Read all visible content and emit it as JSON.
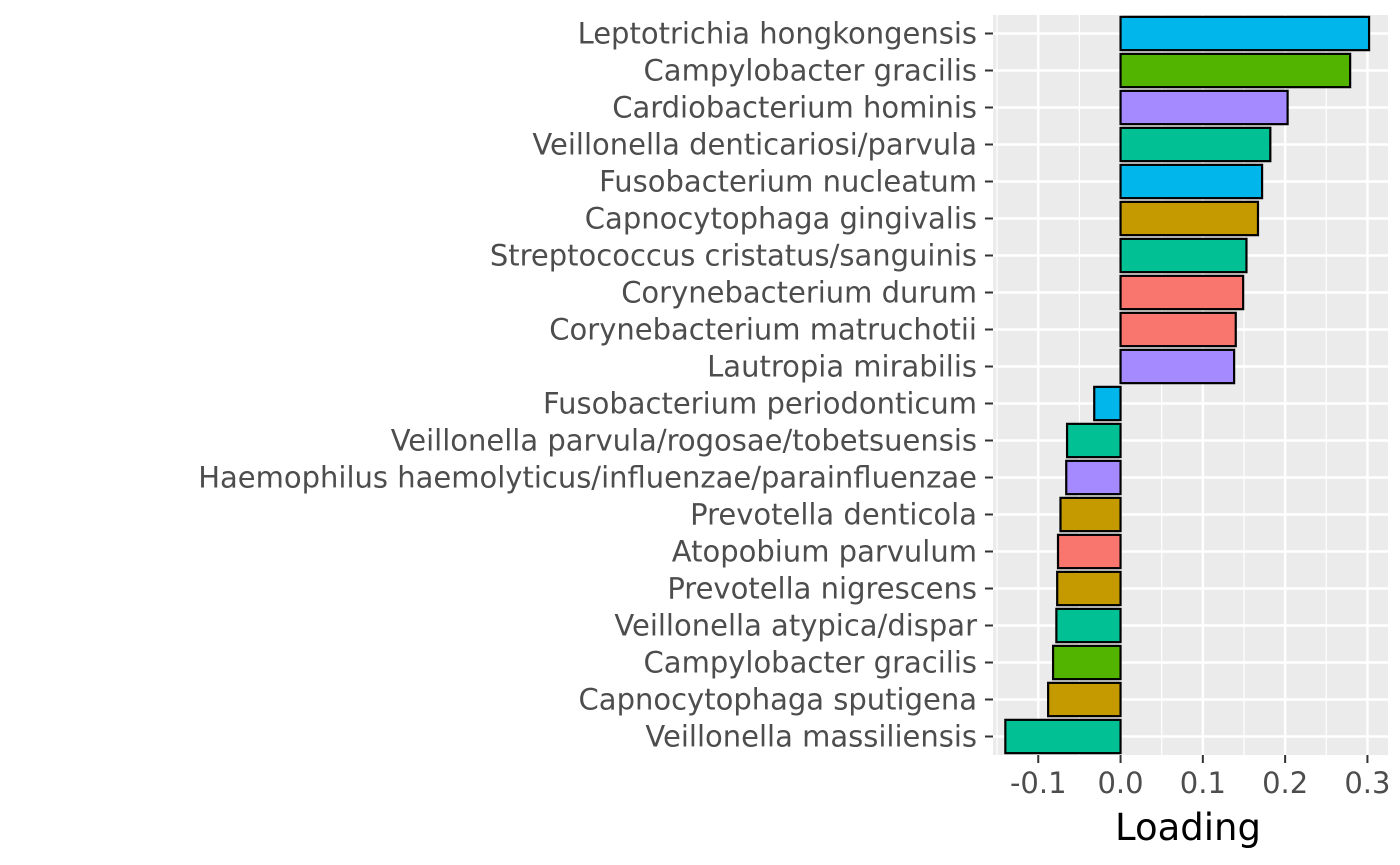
{
  "chart_data": {
    "type": "bar",
    "orientation": "horizontal",
    "title": "",
    "xlabel": "Loading",
    "ylabel": "",
    "xlim": [
      -0.155,
      0.325
    ],
    "xticks": [
      -0.1,
      0.0,
      0.1,
      0.2,
      0.3
    ],
    "xtick_labels": [
      "-0.1",
      "0.0",
      "0.1",
      "0.2",
      "0.3"
    ],
    "grid": true,
    "legend": "none",
    "panel_background": "#ebebeb",
    "grid_color": "#ffffff",
    "bar_outline": "#000000",
    "categories": [
      "Leptotrichia hongkongensis",
      "Campylobacter gracilis",
      "Cardiobacterium hominis",
      "Veillonella denticariosi/parvula",
      "Fusobacterium nucleatum",
      "Capnocytophaga gingivalis",
      "Streptococcus cristatus/sanguinis",
      "Corynebacterium durum",
      "Corynebacterium matruchotii",
      "Lautropia mirabilis",
      "Fusobacterium periodonticum",
      "Veillonella parvula/rogosae/tobetsuensis",
      "Haemophilus haemolyticus/influenzae/parainfluenzae",
      "Prevotella denticola",
      "Atopobium parvulum",
      "Prevotella nigrescens",
      "Veillonella atypica/dispar",
      "Campylobacter gracilis",
      "Capnocytophaga sputigena",
      "Veillonella massiliensis"
    ],
    "values": [
      0.302,
      0.279,
      0.203,
      0.182,
      0.172,
      0.167,
      0.153,
      0.149,
      0.14,
      0.138,
      -0.032,
      -0.065,
      -0.066,
      -0.073,
      -0.076,
      -0.077,
      -0.078,
      -0.082,
      -0.088,
      -0.14
    ],
    "colors": [
      "#00b6eb",
      "#53b400",
      "#a58aff",
      "#00c094",
      "#00b6eb",
      "#c49a00",
      "#00c094",
      "#f8766d",
      "#f8766d",
      "#a58aff",
      "#00b6eb",
      "#00c094",
      "#a58aff",
      "#c49a00",
      "#f8766d",
      "#c49a00",
      "#00c094",
      "#53b400",
      "#c49a00",
      "#00c094"
    ]
  }
}
